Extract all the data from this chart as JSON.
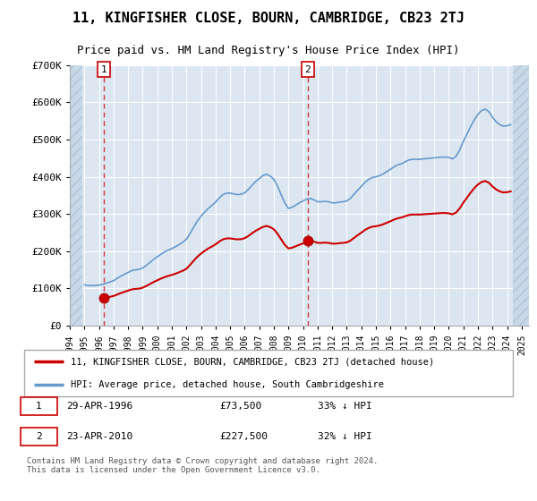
{
  "title": "11, KINGFISHER CLOSE, BOURN, CAMBRIDGE, CB23 2TJ",
  "subtitle": "Price paid vs. HM Land Registry's House Price Index (HPI)",
  "plot_bg_color": "#dce6f1",
  "legend_label_red": "11, KINGFISHER CLOSE, BOURN, CAMBRIDGE, CB23 2TJ (detached house)",
  "legend_label_blue": "HPI: Average price, detached house, South Cambridgeshire",
  "footnote": "Contains HM Land Registry data © Crown copyright and database right 2024.\nThis data is licensed under the Open Government Licence v3.0.",
  "sale1_date": "29-APR-1996",
  "sale1_price": 73500,
  "sale1_x": 1996.33,
  "sale2_date": "23-APR-2010",
  "sale2_price": 227500,
  "sale2_x": 2010.33,
  "ylim_min": 0,
  "ylim_max": 700000,
  "xlim_min": 1994,
  "xlim_max": 2025.5,
  "red_line_color": "#cc0000",
  "blue_line_color": "#6699cc",
  "marker_color": "#cc0000",
  "vline_color": "#cc0000",
  "hpi_years": [
    1995.0,
    1995.25,
    1995.5,
    1995.75,
    1996.0,
    1996.25,
    1996.5,
    1996.75,
    1997.0,
    1997.25,
    1997.5,
    1997.75,
    1998.0,
    1998.25,
    1998.5,
    1998.75,
    1999.0,
    1999.25,
    1999.5,
    1999.75,
    2000.0,
    2000.25,
    2000.5,
    2000.75,
    2001.0,
    2001.25,
    2001.5,
    2001.75,
    2002.0,
    2002.25,
    2002.5,
    2002.75,
    2003.0,
    2003.25,
    2003.5,
    2003.75,
    2004.0,
    2004.25,
    2004.5,
    2004.75,
    2005.0,
    2005.25,
    2005.5,
    2005.75,
    2006.0,
    2006.25,
    2006.5,
    2006.75,
    2007.0,
    2007.25,
    2007.5,
    2007.75,
    2008.0,
    2008.25,
    2008.5,
    2008.75,
    2009.0,
    2009.25,
    2009.5,
    2009.75,
    2010.0,
    2010.25,
    2010.5,
    2010.75,
    2011.0,
    2011.25,
    2011.5,
    2011.75,
    2012.0,
    2012.25,
    2012.5,
    2012.75,
    2013.0,
    2013.25,
    2013.5,
    2013.75,
    2014.0,
    2014.25,
    2014.5,
    2014.75,
    2015.0,
    2015.25,
    2015.5,
    2015.75,
    2016.0,
    2016.25,
    2016.5,
    2016.75,
    2017.0,
    2017.25,
    2017.5,
    2017.75,
    2018.0,
    2018.25,
    2018.5,
    2018.75,
    2019.0,
    2019.25,
    2019.5,
    2019.75,
    2020.0,
    2020.25,
    2020.5,
    2020.75,
    2021.0,
    2021.25,
    2021.5,
    2021.75,
    2022.0,
    2022.25,
    2022.5,
    2022.75,
    2023.0,
    2023.25,
    2023.5,
    2023.75,
    2024.0,
    2024.25
  ],
  "hpi_values": [
    109600,
    108000,
    107500,
    108000,
    109000,
    110500,
    114000,
    117500,
    121000,
    127000,
    133000,
    138000,
    143000,
    148000,
    150000,
    151000,
    155000,
    162000,
    170000,
    178000,
    185000,
    192000,
    198000,
    203000,
    207000,
    212000,
    218000,
    224000,
    232000,
    248000,
    265000,
    281000,
    294000,
    305000,
    315000,
    323000,
    332000,
    343000,
    352000,
    356000,
    356000,
    354000,
    352000,
    353000,
    357000,
    366000,
    377000,
    387000,
    395000,
    403000,
    407000,
    402000,
    393000,
    375000,
    352000,
    330000,
    315000,
    318000,
    324000,
    330000,
    335000,
    340000,
    342000,
    338000,
    333000,
    333000,
    334000,
    333000,
    330000,
    330000,
    332000,
    333000,
    335000,
    342000,
    353000,
    364000,
    374000,
    385000,
    393000,
    398000,
    400000,
    403000,
    408000,
    414000,
    420000,
    427000,
    432000,
    435000,
    440000,
    445000,
    447000,
    447000,
    447000,
    448000,
    449000,
    450000,
    451000,
    452000,
    453000,
    453000,
    452000,
    448000,
    455000,
    472000,
    495000,
    515000,
    535000,
    553000,
    568000,
    578000,
    582000,
    575000,
    560000,
    548000,
    540000,
    536000,
    537000,
    540000
  ]
}
